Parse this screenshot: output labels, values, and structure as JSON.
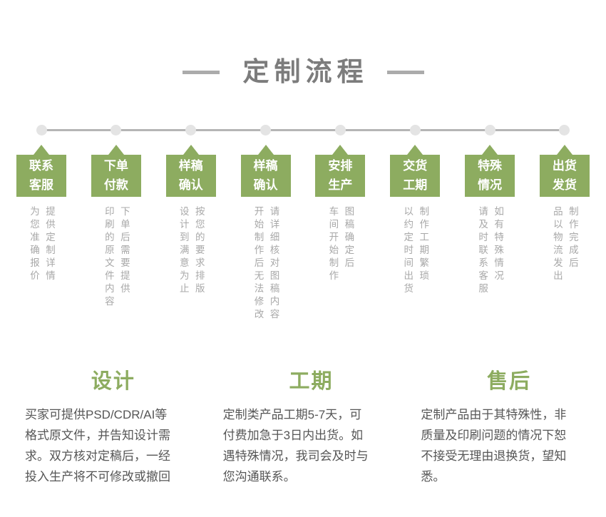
{
  "title": "定制流程",
  "colors": {
    "accent_green": "#8dac60",
    "track_gray": "#b5b5b5",
    "dot_gray": "#e4e4e4",
    "title_gray": "#7c7c7c"
  },
  "steps": [
    {
      "label": [
        "联系",
        "客服"
      ],
      "desc": [
        "提供定制详情",
        "为您准确报价"
      ]
    },
    {
      "label": [
        "下单",
        "付款"
      ],
      "desc": [
        "下单后需要提供",
        "印刷的原文件内容"
      ]
    },
    {
      "label": [
        "样稿",
        "确认"
      ],
      "desc": [
        "按您的要求排版",
        "设计到满意为止"
      ]
    },
    {
      "label": [
        "样稿",
        "确认"
      ],
      "desc": [
        "请详细核对图稿内容",
        "开始制作后无法修改"
      ]
    },
    {
      "label": [
        "安排",
        "生产"
      ],
      "desc": [
        "图稿确定后",
        "车间开始制作"
      ]
    },
    {
      "label": [
        "交货",
        "工期"
      ],
      "desc": [
        "制作工期繁琐",
        "以约定时间出货"
      ]
    },
    {
      "label": [
        "特殊",
        "情况"
      ],
      "desc": [
        "如有特殊情况",
        "请及时联系客服"
      ]
    },
    {
      "label": [
        "出货",
        "发货"
      ],
      "desc": [
        "制作完成后",
        "品以物流发出"
      ]
    }
  ],
  "sections": [
    {
      "title": "设计",
      "lines": [
        "买家可提供PSD/CDR/AI等",
        "格式原文件，并告知设计需",
        "求。双方核对定稿后，一经",
        "投入生产将不可修改或撤回"
      ]
    },
    {
      "title": "工期",
      "lines": [
        "定制类产品工期5-7天，可",
        "付费加急于3日内出货。如",
        "遇特殊情况，我司会及时与",
        "您沟通联系。"
      ]
    },
    {
      "title": "售后",
      "lines": [
        "定制产品由于其特殊性，非",
        "质量及印刷问题的情况下恕",
        "不接受无理由退换货，望知",
        "悉。"
      ]
    }
  ]
}
